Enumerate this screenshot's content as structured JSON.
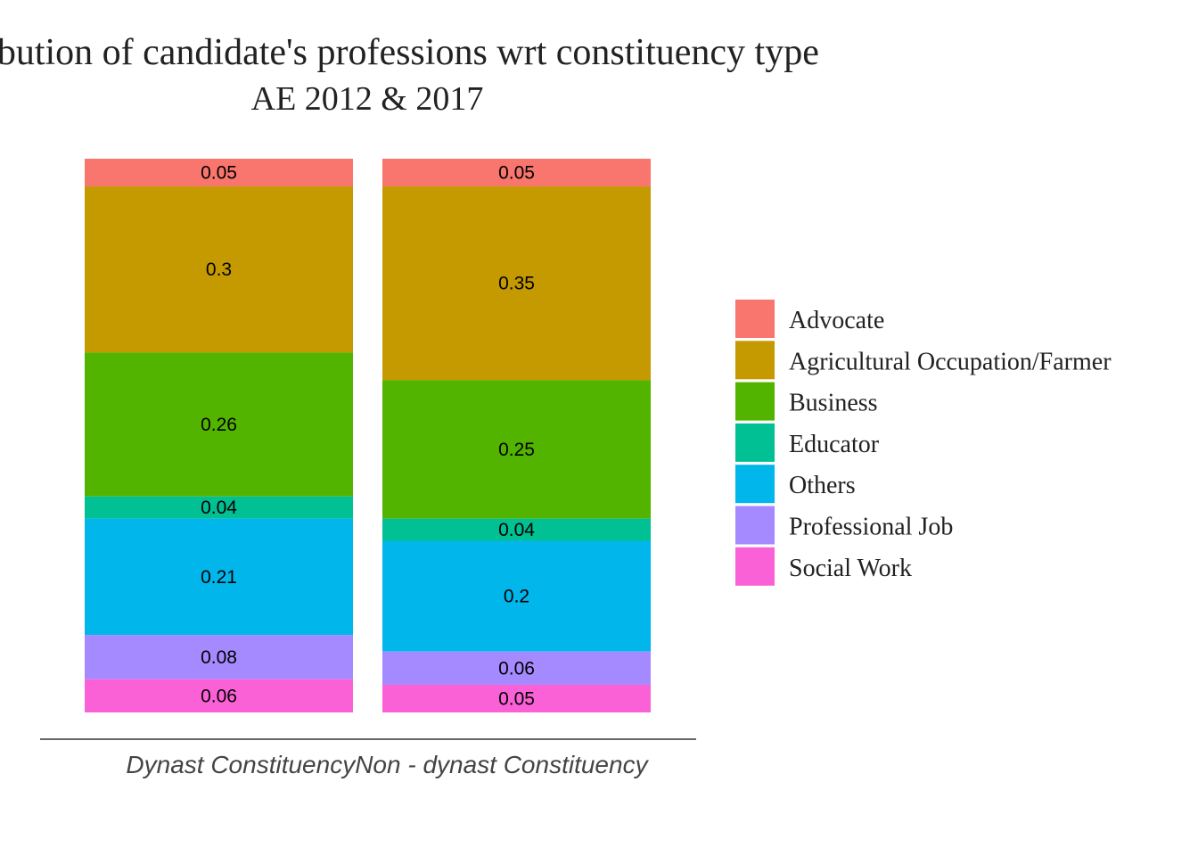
{
  "chart_data": {
    "type": "bar",
    "stacked": true,
    "title": "Distribution of candidate's professions wrt constituency type",
    "subtitle": "AE 2012 & 2017",
    "xlabel": "Dynast ConstituencyNon - dynast Constituency",
    "ylabel": "",
    "ylim": [
      0,
      1
    ],
    "grid": false,
    "legend_position": "right",
    "categories": [
      "Dynast Constituency",
      "Non - dynast Constituency"
    ],
    "series": [
      {
        "name": "Advocate",
        "color": "#F8766D",
        "values": [
          0.05,
          0.05
        ],
        "labels": [
          "0.05",
          "0.05"
        ]
      },
      {
        "name": "Agricultural Occupation/Farmer",
        "color": "#C49A00",
        "values": [
          0.3,
          0.35
        ],
        "labels": [
          "0.3",
          "0.35"
        ]
      },
      {
        "name": "Business",
        "color": "#53B400",
        "values": [
          0.26,
          0.25
        ],
        "labels": [
          "0.26",
          "0.25"
        ]
      },
      {
        "name": "Educator",
        "color": "#00C094",
        "values": [
          0.04,
          0.04
        ],
        "labels": [
          "0.04",
          "0.04"
        ]
      },
      {
        "name": "Others",
        "color": "#00B6EB",
        "values": [
          0.21,
          0.2
        ],
        "labels": [
          "0.21",
          "0.2"
        ]
      },
      {
        "name": "Professional Job",
        "color": "#A58AFF",
        "values": [
          0.08,
          0.06
        ],
        "labels": [
          "0.08",
          "0.06"
        ]
      },
      {
        "name": "Social Work",
        "color": "#FB61D7",
        "values": [
          0.06,
          0.05
        ],
        "labels": [
          "0.06",
          "0.05"
        ]
      }
    ]
  }
}
